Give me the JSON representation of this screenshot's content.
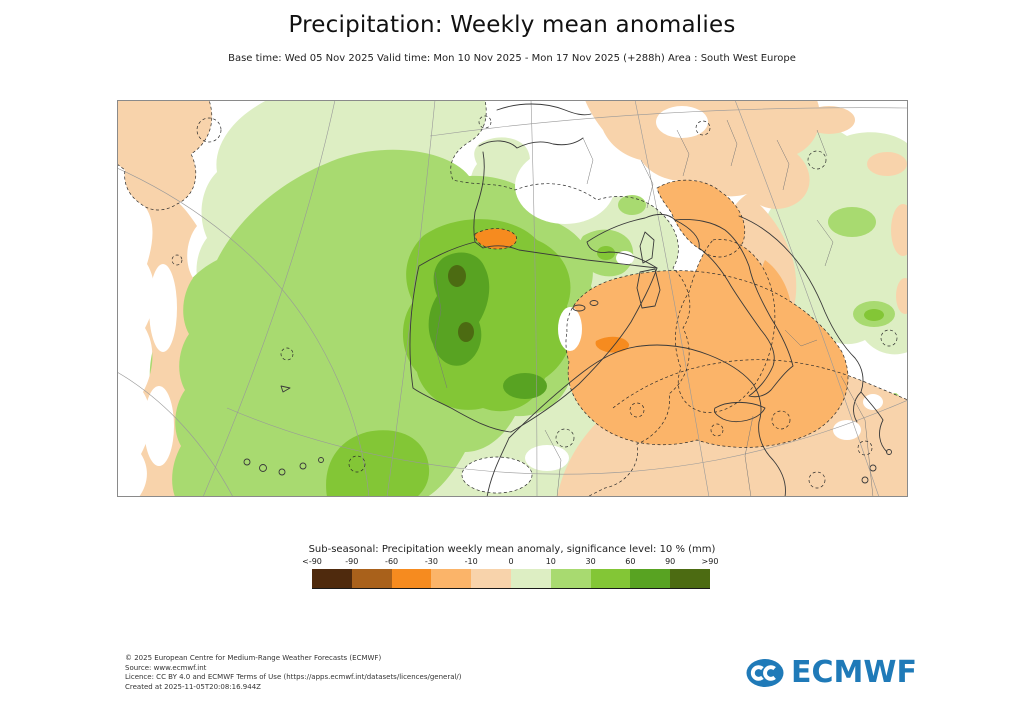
{
  "header": {
    "title": "Precipitation: Weekly mean anomalies",
    "subtitle": "Base time: Wed 05 Nov 2025 Valid time: Mon 10 Nov 2025 - Mon 17 Nov 2025 (+288h) Area : South West Europe"
  },
  "legend": {
    "title": "Sub-seasonal: Precipitation weekly mean anomaly, significance level: 10 % (mm)",
    "ticks": [
      "<-90",
      "-90",
      "-60",
      "-30",
      "-10",
      "0",
      "10",
      "30",
      "60",
      "90",
      ">90"
    ],
    "colors": [
      "#4f2a0d",
      "#a9611b",
      "#f68b1f",
      "#fbb469",
      "#f8d3ab",
      "#ddeec3",
      "#a8da70",
      "#83c636",
      "#58a322",
      "#4c6b12"
    ]
  },
  "footer": {
    "lines": [
      "© 2025 European Centre for Medium-Range Weather Forecasts (ECMWF)",
      "Source: www.ecmwf.int",
      "Licence: CC BY 4.0 and ECMWF Terms of Use (https://apps.ecmwf.int/datasets/licences/general/)",
      "Created at 2025-11-05T20:08:16.944Z"
    ]
  },
  "logo": {
    "text": "ECMWF",
    "color": "#1f7ab8"
  },
  "chart_data": {
    "type": "map",
    "title": "Precipitation: Weekly mean anomalies",
    "area": "South West Europe",
    "base_time": "Wed 05 Nov 2025",
    "valid_time": "Mon 10 Nov 2025 - Mon 17 Nov 2025 (+288h)",
    "variable": "Sub-seasonal precipitation weekly mean anomaly",
    "significance_level": "10 %",
    "units": "mm",
    "scale_bin_edges": [
      "<-90",
      "-90",
      "-60",
      "-30",
      "-10",
      "0",
      "10",
      "30",
      "60",
      "90",
      ">90"
    ],
    "scale_colors": [
      "#4f2a0d",
      "#a9611b",
      "#f68b1f",
      "#fbb469",
      "#f8d3ab",
      "#ddeec3",
      "#a8da70",
      "#83c636",
      "#58a322",
      "#4c6b12"
    ],
    "regions": [
      {
        "name": "western Iberia / Portugal core",
        "anomaly_mm": "60 to 90"
      },
      {
        "name": "small spots over Portugal",
        "anomaly_mm": ">90"
      },
      {
        "name": "Iberian Peninsula and adjacent eastern Atlantic",
        "anomaly_mm": "30 to 60"
      },
      {
        "name": "Bay of Biscay, western France, Canary region, Balkans",
        "anomaly_mm": "0 to 30"
      },
      {
        "name": "Italy, Tyrrhenian Sea, western-central Mediterranean, Tunisia",
        "anomaly_mm": "-30 to -10"
      },
      {
        "name": "Pyrenees streak and Algerian coast spot",
        "anomaly_mm": "-60 to -30"
      },
      {
        "name": "central Europe, Alps, North Africa interior, far-west Atlantic edge",
        "anomaly_mm": "-10 to 0"
      }
    ],
    "legend_position": "bottom",
    "grid": "graticule on, dashed significance contours on"
  }
}
